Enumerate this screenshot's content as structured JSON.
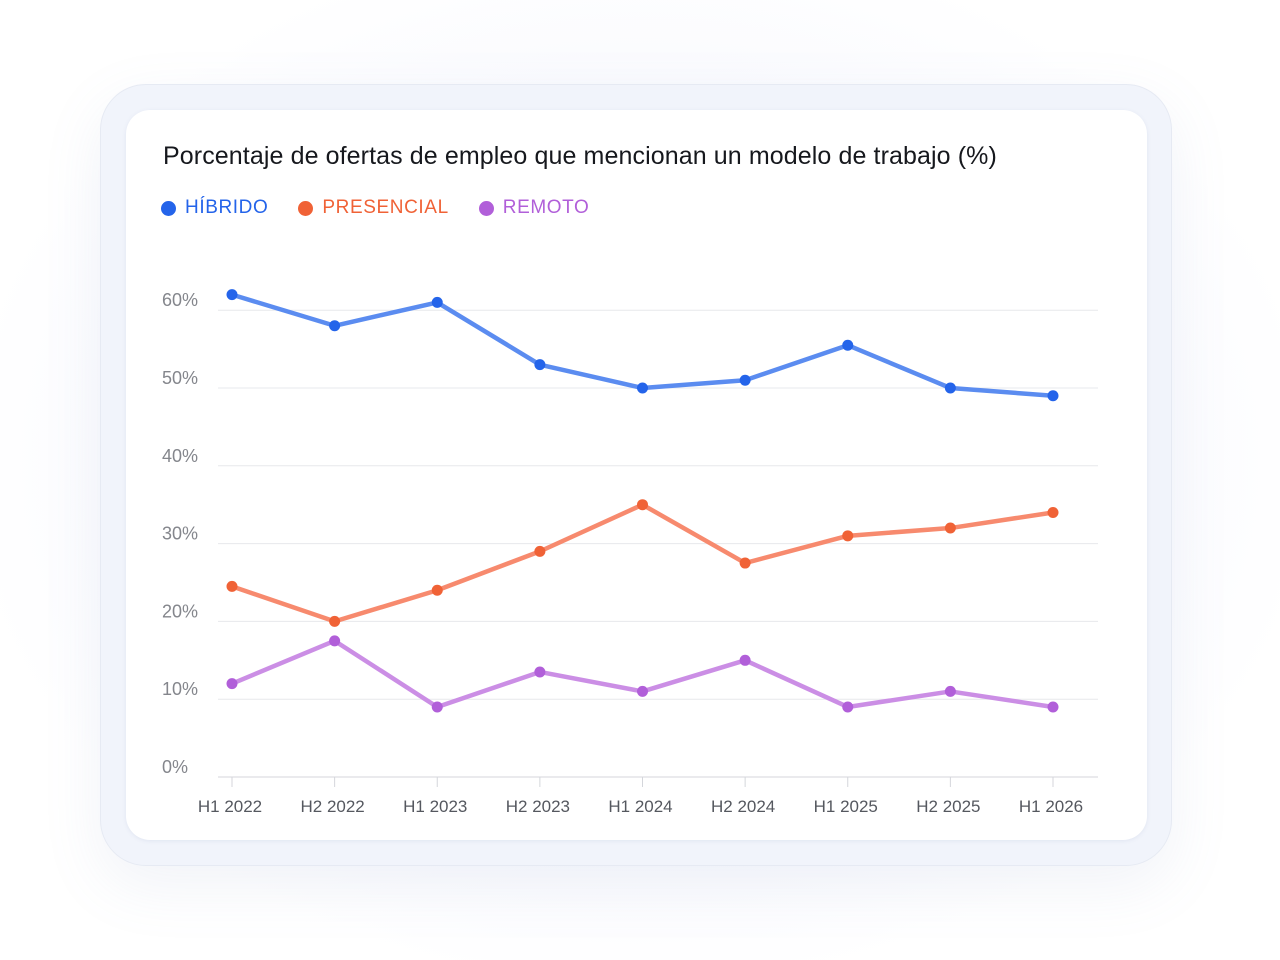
{
  "colors": {
    "hibrido_line": "#5b8cf0",
    "hibrido_point": "#2464ea",
    "presencial_line": "#f78a6e",
    "presencial_point": "#f06236",
    "remoto_line": "#cb8ee5",
    "remoto_point": "#b15fd9",
    "grid": "#e7e8ec",
    "axis": "#d4d6db"
  },
  "chart_data": {
    "type": "line",
    "title": "Porcentaje de ofertas de empleo que mencionan un modelo de trabajo (%)",
    "categories": [
      "H1 2022",
      "H2 2022",
      "H1 2023",
      "H2 2023",
      "H1 2024",
      "H2 2024",
      "H1 2025",
      "H2 2025",
      "H1 2026"
    ],
    "y_ticks": [
      0,
      10,
      20,
      30,
      40,
      50,
      60
    ],
    "y_tick_labels": [
      "0%",
      "10%",
      "20%",
      "30%",
      "40%",
      "50%",
      "60%"
    ],
    "ylim": [
      0,
      61
    ],
    "grid": true,
    "legend_position": "top-left",
    "series": [
      {
        "name": "HÍBRIDO",
        "values": [
          62.0,
          58.0,
          61.0,
          53.0,
          50.0,
          51.0,
          55.5,
          50.0,
          49.0
        ]
      },
      {
        "name": "PRESENCIAL",
        "values": [
          24.5,
          20.0,
          24.0,
          29.0,
          35.0,
          27.5,
          31.0,
          32.0,
          34.0
        ]
      },
      {
        "name": "REMOTO",
        "values": [
          12.0,
          17.5,
          9.0,
          13.5,
          11.0,
          15.0,
          9.0,
          11.0,
          9.0
        ]
      }
    ]
  }
}
